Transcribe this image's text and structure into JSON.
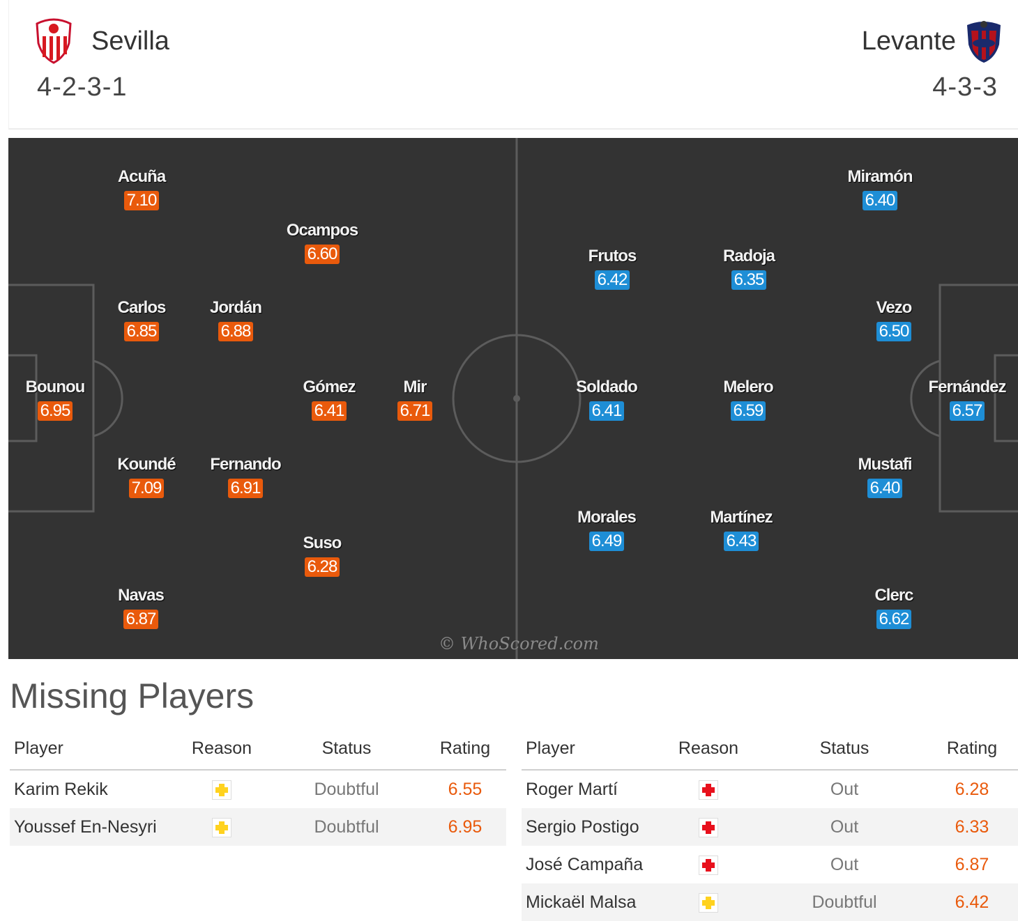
{
  "home": {
    "name": "Sevilla",
    "formation": "4-2-3-1",
    "players": [
      {
        "name": "Acuña",
        "rating": "7.10"
      },
      {
        "name": "Ocampos",
        "rating": "6.60"
      },
      {
        "name": "Carlos",
        "rating": "6.85"
      },
      {
        "name": "Jordán",
        "rating": "6.88"
      },
      {
        "name": "Bounou",
        "rating": "6.95"
      },
      {
        "name": "Gómez",
        "rating": "6.41"
      },
      {
        "name": "Mir",
        "rating": "6.71"
      },
      {
        "name": "Koundé",
        "rating": "7.09"
      },
      {
        "name": "Fernando",
        "rating": "6.91"
      },
      {
        "name": "Suso",
        "rating": "6.28"
      },
      {
        "name": "Navas",
        "rating": "6.87"
      }
    ],
    "accent": "#e95a0c"
  },
  "away": {
    "name": "Levante",
    "formation": "4-3-3",
    "players": [
      {
        "name": "Miramón",
        "rating": "6.40"
      },
      {
        "name": "Frutos",
        "rating": "6.42"
      },
      {
        "name": "Radoja",
        "rating": "6.35"
      },
      {
        "name": "Vezo",
        "rating": "6.50"
      },
      {
        "name": "Soldado",
        "rating": "6.41"
      },
      {
        "name": "Melero",
        "rating": "6.59"
      },
      {
        "name": "Fernández",
        "rating": "6.57"
      },
      {
        "name": "Mustafi",
        "rating": "6.40"
      },
      {
        "name": "Morales",
        "rating": "6.49"
      },
      {
        "name": "Martínez",
        "rating": "6.43"
      },
      {
        "name": "Clerc",
        "rating": "6.62"
      }
    ],
    "accent": "#1e8ed6"
  },
  "watermark": "© WhoScored.com",
  "missing": {
    "title": "Missing Players",
    "headers": {
      "player": "Player",
      "reason": "Reason",
      "status": "Status",
      "rating": "Rating"
    },
    "home": [
      {
        "player": "Karim Rekik",
        "reason": "injury-doubtful-icon",
        "status": "Doubtful",
        "rating": "6.55"
      },
      {
        "player": "Youssef En-Nesyri",
        "reason": "injury-doubtful-icon",
        "status": "Doubtful",
        "rating": "6.95"
      }
    ],
    "away": [
      {
        "player": "Roger Martí",
        "reason": "injury-out-icon",
        "status": "Out",
        "rating": "6.28"
      },
      {
        "player": "Sergio Postigo",
        "reason": "injury-out-icon",
        "status": "Out",
        "rating": "6.33"
      },
      {
        "player": "José Campaña",
        "reason": "injury-out-icon",
        "status": "Out",
        "rating": "6.87"
      },
      {
        "player": "Mickaël Malsa",
        "reason": "injury-doubtful-icon",
        "status": "Doubtful",
        "rating": "6.42"
      }
    ]
  }
}
